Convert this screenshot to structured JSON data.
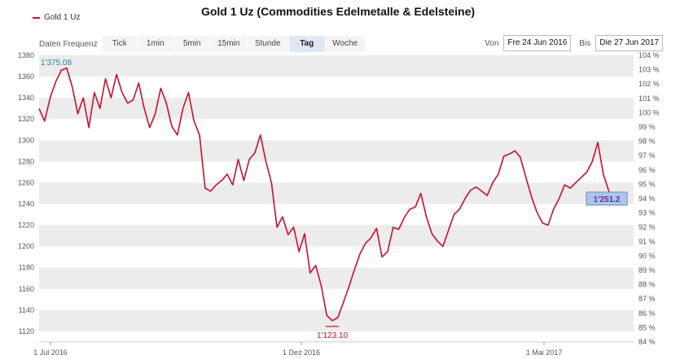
{
  "title": "Gold 1 Uz (Commodities Edelmetalle & Edelsteine)",
  "legend": {
    "label": "Gold 1 Uz",
    "color": "#c8102e"
  },
  "frequency": {
    "label": "Daten Frequenz",
    "options": [
      "Tick",
      "1min",
      "5min",
      "15min",
      "Stunde",
      "Tag",
      "Woche"
    ],
    "selected": "Tag"
  },
  "range": {
    "from_label": "Von",
    "from_value": "Fre 24 Jun 2016",
    "to_label": "Bis",
    "to_value": "Die 27 Jun 2017"
  },
  "chart_data": {
    "type": "line",
    "series": [
      {
        "name": "Gold 1 Uz",
        "color": "#c8102e",
        "values": [
          1330,
          1318,
          1340,
          1355,
          1366,
          1368,
          1350,
          1325,
          1340,
          1312,
          1345,
          1330,
          1358,
          1340,
          1362,
          1345,
          1335,
          1338,
          1354,
          1330,
          1312,
          1325,
          1349,
          1335,
          1313,
          1305,
          1330,
          1345,
          1318,
          1305,
          1255,
          1252,
          1258,
          1262,
          1268,
          1258,
          1282,
          1262,
          1282,
          1288,
          1305,
          1280,
          1260,
          1218,
          1228,
          1211,
          1218,
          1195,
          1212,
          1175,
          1182,
          1163,
          1135,
          1130,
          1133,
          1147,
          1162,
          1178,
          1193,
          1203,
          1208,
          1217,
          1190,
          1195,
          1218,
          1216,
          1227,
          1235,
          1237,
          1250,
          1228,
          1212,
          1205,
          1200,
          1215,
          1230,
          1235,
          1245,
          1253,
          1256,
          1252,
          1248,
          1260,
          1268,
          1285,
          1287,
          1290,
          1284,
          1265,
          1247,
          1232,
          1222,
          1220,
          1235,
          1245,
          1258,
          1255,
          1260,
          1265,
          1270,
          1280,
          1298,
          1268,
          1252,
          1240,
          1251,
          1245
        ]
      }
    ],
    "x_labels": [
      "1 Jul 2016",
      "1 Dez 2016",
      "1 Mai 2017"
    ],
    "y_left": {
      "min": 1110,
      "max": 1380,
      "ticks": [
        1120,
        1140,
        1160,
        1180,
        1200,
        1220,
        1240,
        1260,
        1280,
        1300,
        1320,
        1340,
        1360,
        1380
      ]
    },
    "y_right": {
      "unit": "%",
      "min": 84,
      "max": 104,
      "ticks": [
        84,
        85,
        86,
        87,
        88,
        89,
        90,
        91,
        92,
        93,
        94,
        95,
        96,
        97,
        98,
        99,
        100,
        101,
        102,
        103,
        104
      ]
    },
    "annotations": [
      {
        "text": "1'375.08",
        "kind": "high"
      },
      {
        "text": "1'123.10",
        "kind": "low"
      },
      {
        "text": "1'251.2",
        "kind": "last"
      }
    ],
    "colors": {
      "line": "#c8102e",
      "band": "#ececec",
      "high_label": "#2a7fa8",
      "low_label": "#c8102e",
      "last_label": "#6a2aa8",
      "last_box": "#a9c7e8"
    }
  }
}
